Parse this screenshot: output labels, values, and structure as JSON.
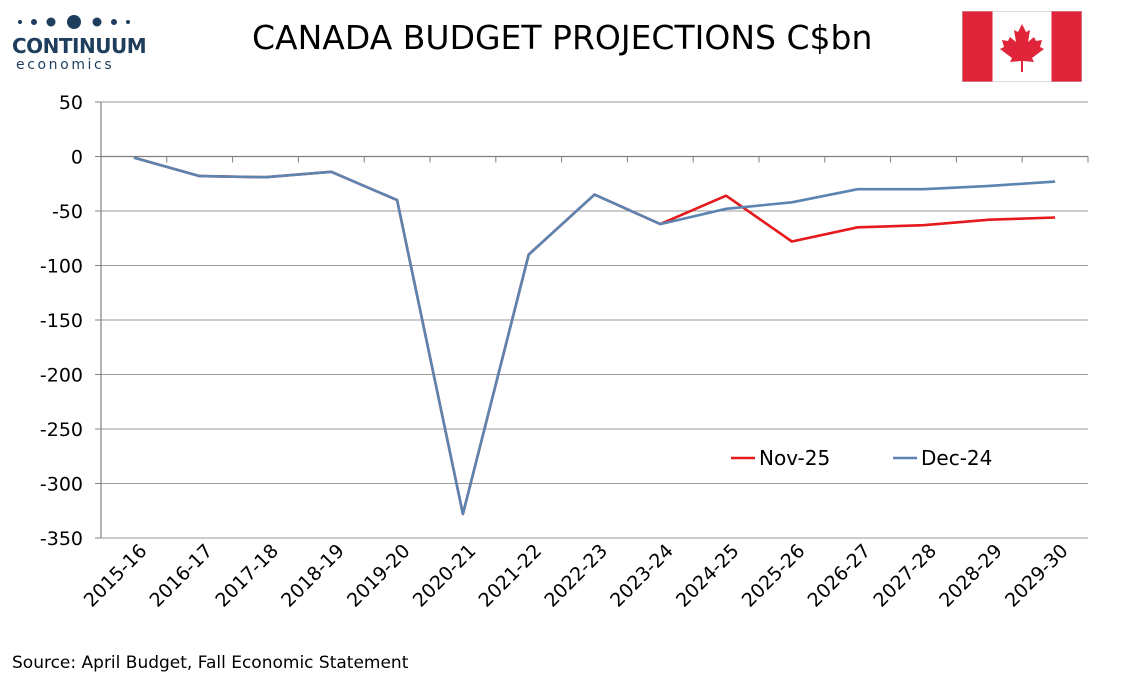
{
  "header": {
    "title": "CANADA BUDGET PROJECTIONS C$bn",
    "logo_brand": "CONTINUUM",
    "logo_sub": "economics",
    "flag_icon": "canada-flag-icon"
  },
  "footer": {
    "source": "Source: April Budget, Fall Economic Statement"
  },
  "colors": {
    "nov25": "#e41a1c",
    "dec24": "#5b84b1",
    "grid": "#9a9a9a",
    "flag_red": "#e0243a",
    "logo": "#1f3d5c"
  },
  "chart_data": {
    "type": "line",
    "title": "CANADA BUDGET PROJECTIONS C$bn",
    "xlabel": "",
    "ylabel": "",
    "ylim": [
      -350,
      50
    ],
    "yticks": [
      "50",
      "0",
      "-50",
      "-100",
      "-150",
      "-200",
      "-250",
      "-300",
      "-350"
    ],
    "ytick_values": [
      50,
      0,
      -50,
      -100,
      -150,
      -200,
      -250,
      -300,
      -350
    ],
    "grid": true,
    "legend_position": "lower-right",
    "categories": [
      "2015-16",
      "2016-17",
      "2017-18",
      "2018-19",
      "2019-20",
      "2020-21",
      "2021-22",
      "2022-23",
      "2023-24",
      "2024-25",
      "2025-26",
      "2026-27",
      "2027-28",
      "2028-29",
      "2029-30"
    ],
    "series": [
      {
        "name": "Nov-25",
        "color": "#e41a1c",
        "values": [
          -1,
          -18,
          -19,
          -14,
          -40,
          -328,
          -90,
          -35,
          -62,
          -36,
          -78,
          -65,
          -63,
          -58,
          -56
        ]
      },
      {
        "name": "Dec-24",
        "color": "#5b84b1",
        "values": [
          -1,
          -18,
          -19,
          -14,
          -40,
          -328,
          -90,
          -35,
          -62,
          -48,
          -42,
          -30,
          -30,
          -27,
          -23
        ]
      }
    ]
  }
}
